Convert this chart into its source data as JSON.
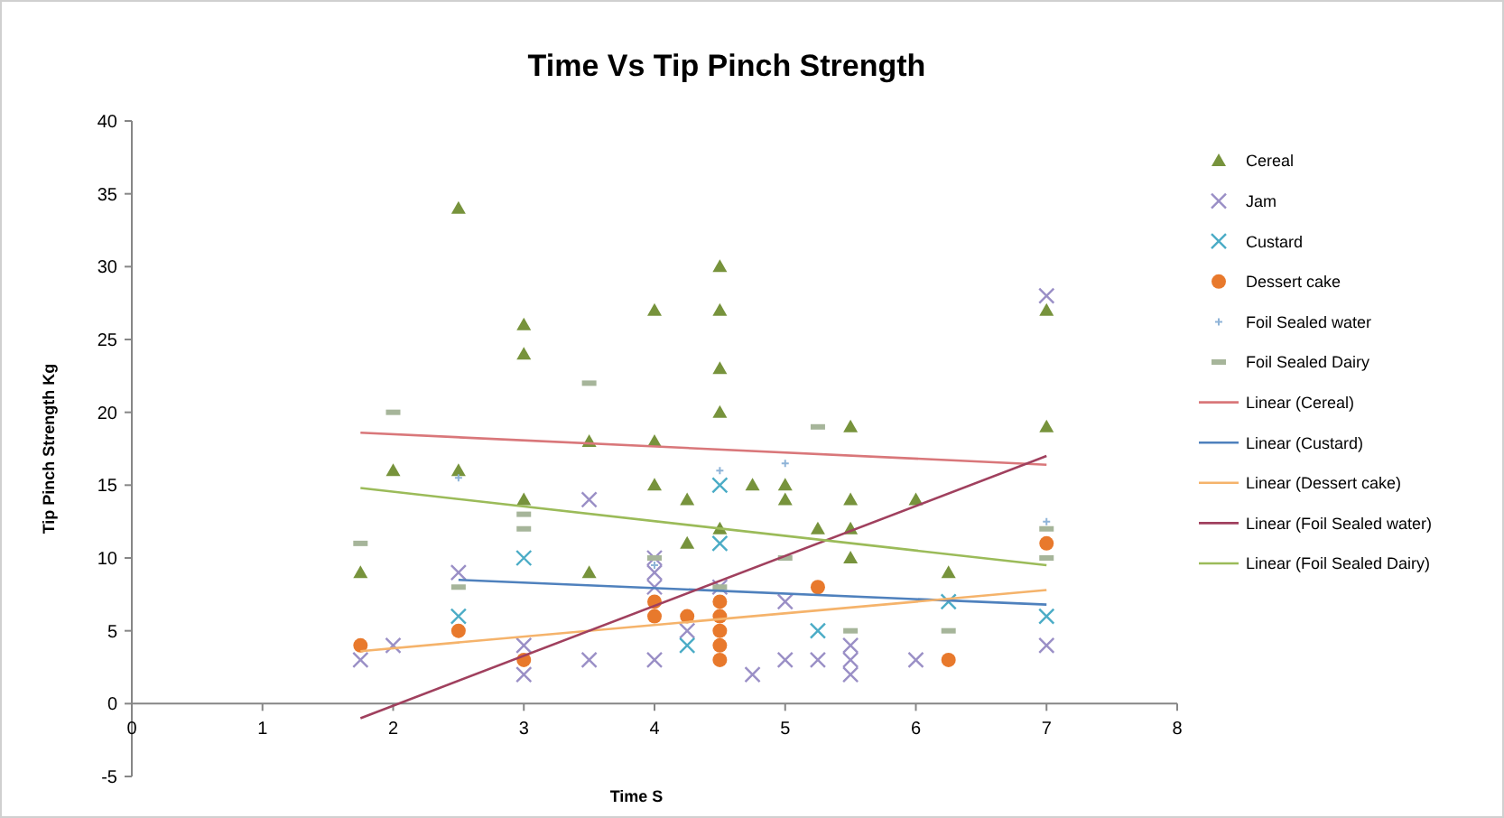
{
  "chart_data": {
    "type": "scatter",
    "title": "Time Vs Tip Pinch Strength",
    "xlabel": "Time S",
    "ylabel": "Tip Pinch Strength Kg",
    "xlim": [
      0,
      8
    ],
    "xticks": [
      0,
      1,
      2,
      3,
      4,
      5,
      6,
      7,
      8
    ],
    "ylim": [
      -5,
      40
    ],
    "yticks": [
      -5,
      0,
      5,
      10,
      15,
      20,
      25,
      30,
      35,
      40
    ],
    "grid": false,
    "legend": "right",
    "series": [
      {
        "name": "Cereal",
        "marker": "triangle",
        "color": "#77933c",
        "x": [
          1.75,
          2,
          2.5,
          2.5,
          3,
          3,
          3,
          3.5,
          3.5,
          4,
          4,
          4,
          4.25,
          4.25,
          4.5,
          4.5,
          4.5,
          4.5,
          4.5,
          4.75,
          5,
          5,
          5.25,
          5.5,
          5.5,
          5.5,
          5.5,
          6,
          6.25,
          7,
          7
        ],
        "values": [
          9,
          16,
          34,
          16,
          26,
          24,
          14,
          18,
          9,
          27,
          18,
          15,
          14,
          11,
          30,
          27,
          23,
          20,
          12,
          15,
          15,
          14,
          12,
          19,
          14,
          12,
          10,
          14,
          9,
          27,
          19
        ]
      },
      {
        "name": "Jam",
        "marker": "cross",
        "color": "#9a8fc6",
        "x": [
          1.75,
          2,
          2.5,
          3,
          3,
          3.5,
          3.5,
          4,
          4,
          4,
          4,
          4.25,
          4.5,
          4.75,
          5,
          5,
          5.25,
          5.5,
          5.5,
          5.5,
          6,
          7,
          7
        ],
        "values": [
          3,
          4,
          9,
          4,
          2,
          3,
          14,
          3,
          10,
          9,
          8,
          5,
          8,
          2,
          3,
          7,
          3,
          4,
          3,
          2,
          3,
          28,
          4
        ]
      },
      {
        "name": "Custard",
        "marker": "cross",
        "color": "#4bacc6",
        "x": [
          2.5,
          3,
          4.25,
          4.5,
          4.5,
          5.25,
          6.25,
          7
        ],
        "values": [
          6,
          10,
          4,
          15,
          11,
          5,
          7,
          6
        ]
      },
      {
        "name": "Dessert cake",
        "marker": "circle",
        "color": "#e8792c",
        "x": [
          1.75,
          2.5,
          3,
          4,
          4,
          4.25,
          4.5,
          4.5,
          4.5,
          4.5,
          4.5,
          5.25,
          6.25,
          7
        ],
        "values": [
          4,
          5,
          3,
          7,
          6,
          6,
          7,
          6,
          5,
          4,
          3,
          8,
          3,
          11
        ]
      },
      {
        "name": "Foil Sealed water",
        "marker": "plus",
        "color": "#8fb4d8",
        "x": [
          2.5,
          4,
          4.5,
          5,
          7
        ],
        "values": [
          15.5,
          9.5,
          16,
          16.5,
          12.5
        ]
      },
      {
        "name": "Foil Sealed Dairy",
        "marker": "square",
        "color": "#a6b59a",
        "x": [
          1.75,
          2,
          2.5,
          3,
          3,
          3.5,
          4,
          4.5,
          5,
          5.25,
          5.5,
          6.25,
          7,
          7
        ],
        "values": [
          11,
          20,
          8,
          13,
          12,
          22,
          10,
          8,
          10,
          19,
          5,
          5,
          10,
          12
        ]
      },
      {
        "name": "Linear (Cereal)",
        "type": "line",
        "color": "#d9777a",
        "x": [
          1.75,
          7
        ],
        "values": [
          18.6,
          16.4
        ]
      },
      {
        "name": "Linear (Custard)",
        "type": "line",
        "color": "#4f81bd",
        "x": [
          2.5,
          7
        ],
        "values": [
          8.5,
          6.8
        ]
      },
      {
        "name": "Linear (Dessert cake)",
        "type": "line",
        "color": "#f5b36b",
        "x": [
          1.75,
          7
        ],
        "values": [
          3.6,
          7.8
        ]
      },
      {
        "name": "Linear (Foil Sealed water)",
        "type": "line",
        "color": "#a0405e",
        "x": [
          1.75,
          7
        ],
        "values": [
          -1,
          17
        ]
      },
      {
        "name": "Linear (Foil Sealed Dairy)",
        "type": "line",
        "color": "#9bbb59",
        "x": [
          1.75,
          7
        ],
        "values": [
          14.8,
          9.5
        ]
      }
    ]
  }
}
